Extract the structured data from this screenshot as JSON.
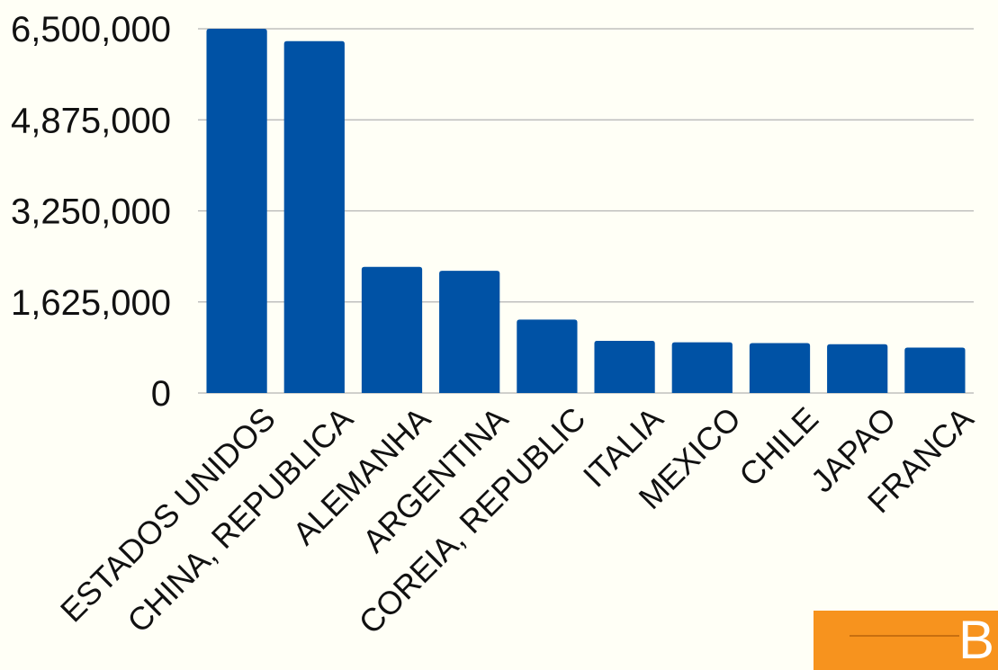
{
  "chart_data": {
    "type": "bar",
    "categories": [
      "ESTADOS UNIDOS",
      "CHINA, REPUBLICA",
      "ALEMANHA",
      "ARGENTINA",
      "COREIA, REPUBLIC",
      "ITALIA",
      "MEXICO",
      "CHILE",
      "JAPAO",
      "FRANCA"
    ],
    "values": [
      6500000,
      6280000,
      2250000,
      2180000,
      1310000,
      930000,
      905000,
      890000,
      870000,
      810000
    ],
    "ylim": [
      0,
      6500000
    ],
    "yticks": [
      0,
      1625000,
      3250000,
      4875000,
      6500000
    ],
    "ytick_labels": [
      "0",
      "1,625,000",
      "3,250,000",
      "4,875,000",
      "6,500,000"
    ],
    "title": "",
    "xlabel": "",
    "ylabel": "",
    "grid": true,
    "legend": "none",
    "bar_color": "#0052a5",
    "background": "#fffff6"
  },
  "logo": {
    "letter": "B",
    "color": "#f7931e"
  }
}
